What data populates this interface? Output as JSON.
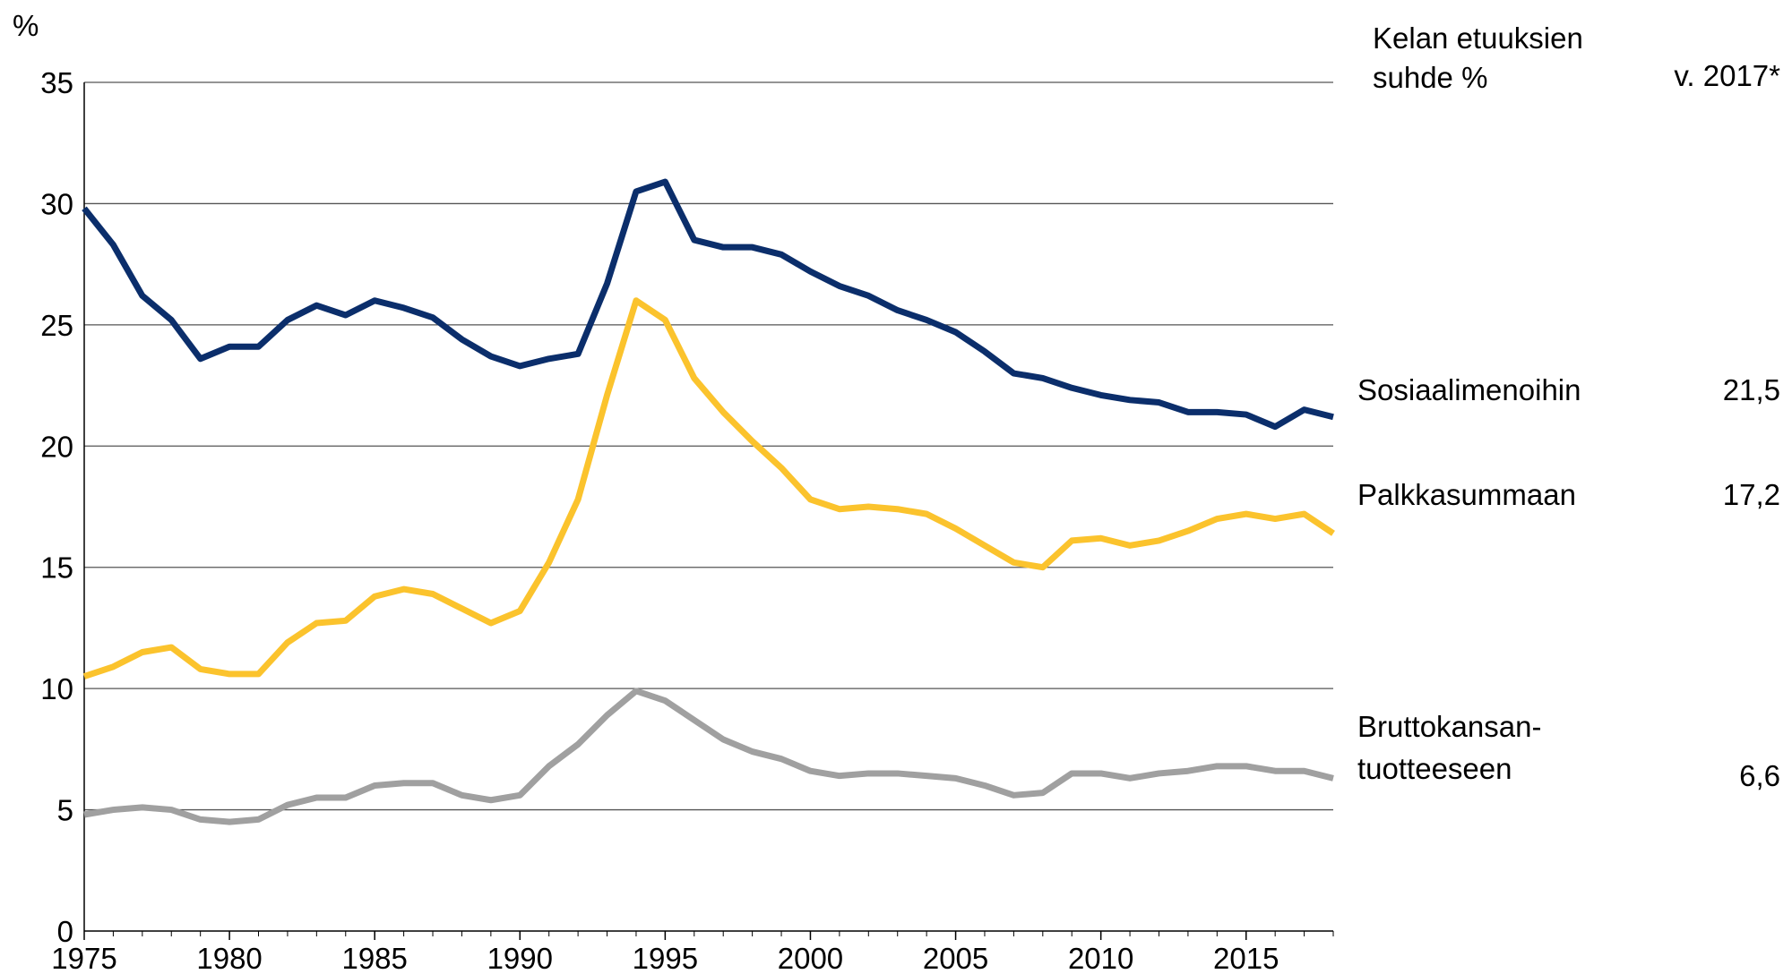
{
  "chart_data": {
    "type": "line",
    "y_label": "%",
    "legend_title": "Kelan etuuksien\nsuhde %",
    "value_column_title": "v. 2017*",
    "x": [
      1975,
      1976,
      1977,
      1978,
      1979,
      1980,
      1981,
      1982,
      1983,
      1984,
      1985,
      1986,
      1987,
      1988,
      1989,
      1990,
      1991,
      1992,
      1993,
      1994,
      1995,
      1996,
      1997,
      1998,
      1999,
      2000,
      2001,
      2002,
      2003,
      2004,
      2005,
      2006,
      2007,
      2008,
      2009,
      2010,
      2011,
      2012,
      2013,
      2014,
      2015,
      2016,
      2017,
      2018
    ],
    "series": [
      {
        "name": "Sosiaalimenoihin",
        "color": "#0b2e6b",
        "note": "21,5",
        "values": [
          29.8,
          28.3,
          26.2,
          25.2,
          23.6,
          24.1,
          24.1,
          25.2,
          25.8,
          25.4,
          26.0,
          25.7,
          25.3,
          24.4,
          23.7,
          23.3,
          23.6,
          23.8,
          26.7,
          30.5,
          30.9,
          28.5,
          28.2,
          28.2,
          27.9,
          27.2,
          26.6,
          26.2,
          25.6,
          25.2,
          24.7,
          23.9,
          23.0,
          22.8,
          22.4,
          22.1,
          21.9,
          21.8,
          21.4,
          21.4,
          21.3,
          20.8,
          21.5,
          21.2
        ]
      },
      {
        "name": "Palkkasummaan",
        "color": "#fbc32d",
        "note": "17,2",
        "values": [
          10.5,
          10.9,
          11.5,
          11.7,
          10.8,
          10.6,
          10.6,
          11.9,
          12.7,
          12.8,
          13.8,
          14.1,
          13.9,
          13.3,
          12.7,
          13.2,
          15.2,
          17.8,
          22.1,
          26.0,
          25.2,
          22.8,
          21.4,
          20.2,
          19.1,
          17.8,
          17.4,
          17.5,
          17.4,
          17.2,
          16.6,
          15.9,
          15.2,
          15.0,
          16.1,
          16.2,
          15.9,
          16.1,
          16.5,
          17.0,
          17.2,
          17.0,
          17.2,
          16.4
        ]
      },
      {
        "name": "Bruttokansan-\ntuotteeseen",
        "color": "#a0a0a0",
        "note": "6,6",
        "values": [
          4.8,
          5.0,
          5.1,
          5.0,
          4.6,
          4.5,
          4.6,
          5.2,
          5.5,
          5.5,
          6.0,
          6.1,
          6.1,
          5.6,
          5.4,
          5.6,
          6.8,
          7.7,
          8.9,
          9.9,
          9.5,
          8.7,
          7.9,
          7.4,
          7.1,
          6.6,
          6.4,
          6.5,
          6.5,
          6.4,
          6.3,
          6.0,
          5.6,
          5.7,
          6.5,
          6.5,
          6.3,
          6.5,
          6.6,
          6.8,
          6.8,
          6.6,
          6.6,
          6.3
        ]
      }
    ],
    "xlim": [
      1975,
      2018
    ],
    "xticks": [
      1975,
      1980,
      1985,
      1990,
      1995,
      2000,
      2005,
      2010,
      2015
    ],
    "ylim": [
      0,
      35
    ],
    "yticks": [
      0,
      5,
      10,
      15,
      20,
      25,
      30,
      35
    ],
    "grid": true
  }
}
